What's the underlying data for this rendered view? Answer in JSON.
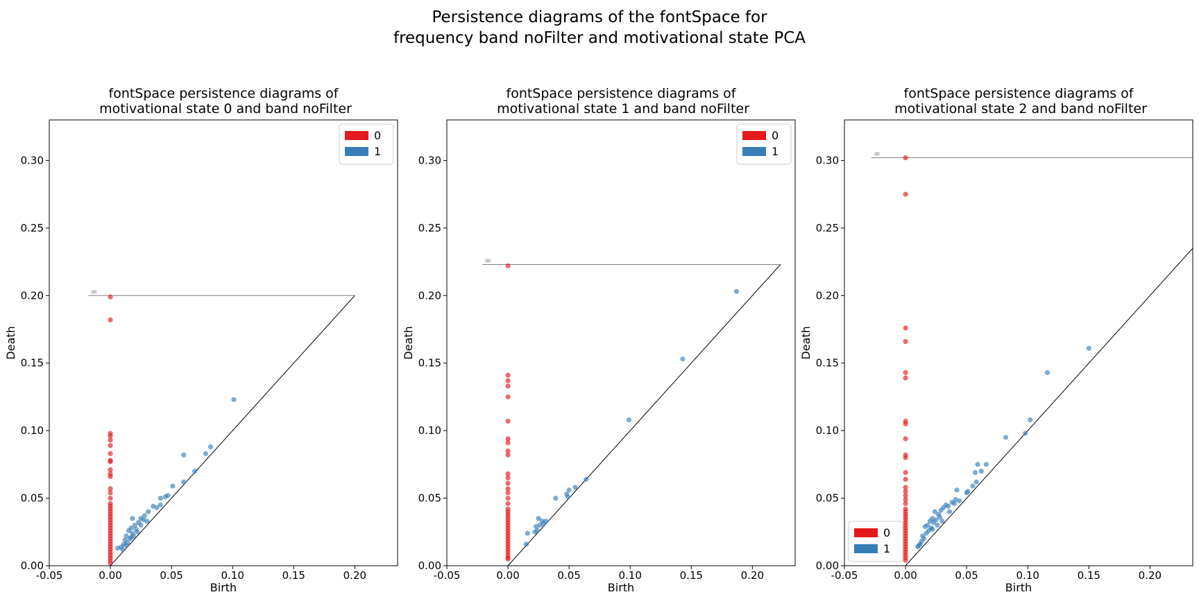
{
  "figure": {
    "title_line1": "Persistence diagrams of the fontSpace for",
    "title_line2": "frequency band noFilter and motivational state PCA",
    "colors": {
      "h0": "#e41a1c",
      "h1": "#377eb8",
      "axis": "#000000",
      "infinity_line": "#7f7f7f"
    }
  },
  "chart_data": [
    {
      "type": "scatter",
      "title": "fontSpace persistence diagrams of\n motivational state 0 and band noFilter",
      "xlabel": "Birth",
      "ylabel": "Death",
      "xlim": [
        -0.05,
        0.235
      ],
      "ylim": [
        0.0,
        0.33
      ],
      "xticks": [
        "-0.05",
        "0.00",
        "0.05",
        "0.10",
        "0.15",
        "0.20"
      ],
      "yticks": [
        "0.00",
        "0.05",
        "0.10",
        "0.15",
        "0.20",
        "0.25",
        "0.30"
      ],
      "infinity": {
        "death": 0.2,
        "x_start": -0.018,
        "label": "∞"
      },
      "diagonal_max": 0.2,
      "legend": {
        "position": "top-right",
        "entries": [
          "0",
          "1"
        ]
      },
      "series": [
        {
          "name": "0",
          "color": "#e41a1c",
          "points": [
            [
              0,
              0.199
            ],
            [
              0,
              0.182
            ],
            [
              0,
              0.098
            ],
            [
              0,
              0.096
            ],
            [
              0,
              0.093
            ],
            [
              0,
              0.089
            ],
            [
              0,
              0.083
            ],
            [
              0,
              0.078
            ],
            [
              0,
              0.077
            ],
            [
              0,
              0.071
            ],
            [
              0,
              0.068
            ],
            [
              0,
              0.066
            ],
            [
              0,
              0.057
            ],
            [
              0,
              0.054
            ],
            [
              0,
              0.05
            ],
            [
              0,
              0.046
            ],
            [
              0,
              0.044
            ],
            [
              0,
              0.042
            ],
            [
              0,
              0.04
            ],
            [
              0,
              0.038
            ],
            [
              0,
              0.036
            ],
            [
              0,
              0.034
            ],
            [
              0,
              0.032
            ],
            [
              0,
              0.03
            ],
            [
              0,
              0.028
            ],
            [
              0,
              0.026
            ],
            [
              0,
              0.024
            ],
            [
              0,
              0.022
            ],
            [
              0,
              0.02
            ],
            [
              0,
              0.018
            ],
            [
              0,
              0.016
            ],
            [
              0,
              0.014
            ],
            [
              0,
              0.012
            ],
            [
              0,
              0.01
            ],
            [
              0,
              0.008
            ],
            [
              0,
              0.006
            ],
            [
              0,
              0.004
            ],
            [
              0,
              0.002
            ]
          ]
        },
        {
          "name": "1",
          "color": "#377eb8",
          "points": [
            [
              0.101,
              0.123
            ],
            [
              0.082,
              0.088
            ],
            [
              0.078,
              0.083
            ],
            [
              0.06,
              0.082
            ],
            [
              0.069,
              0.07
            ],
            [
              0.06,
              0.062
            ],
            [
              0.051,
              0.059
            ],
            [
              0.047,
              0.052
            ],
            [
              0.045,
              0.051
            ],
            [
              0.041,
              0.05
            ],
            [
              0.041,
              0.045
            ],
            [
              0.038,
              0.043
            ],
            [
              0.035,
              0.044
            ],
            [
              0.031,
              0.04
            ],
            [
              0.028,
              0.037
            ],
            [
              0.025,
              0.035
            ],
            [
              0.018,
              0.035
            ],
            [
              0.023,
              0.032
            ],
            [
              0.02,
              0.03
            ],
            [
              0.017,
              0.028
            ],
            [
              0.021,
              0.027
            ],
            [
              0.015,
              0.026
            ],
            [
              0.018,
              0.024
            ],
            [
              0.013,
              0.022
            ],
            [
              0.016,
              0.02
            ],
            [
              0.012,
              0.019
            ],
            [
              0.014,
              0.017
            ],
            [
              0.011,
              0.016
            ],
            [
              0.013,
              0.015
            ],
            [
              0.009,
              0.014
            ],
            [
              0.006,
              0.013
            ],
            [
              0.01,
              0.012
            ],
            [
              0.025,
              0.03
            ],
            [
              0.03,
              0.033
            ],
            [
              0.027,
              0.034
            ],
            [
              0.019,
              0.022
            ],
            [
              0.022,
              0.025
            ],
            [
              0.017,
              0.021
            ]
          ]
        }
      ]
    },
    {
      "type": "scatter",
      "title": "fontSpace persistence diagrams of\n motivational state 1 and band noFilter",
      "xlabel": "Birth",
      "ylabel": "Death",
      "xlim": [
        -0.05,
        0.235
      ],
      "ylim": [
        0.0,
        0.33
      ],
      "xticks": [
        "-0.05",
        "0.00",
        "0.05",
        "0.10",
        "0.15",
        "0.20"
      ],
      "yticks": [
        "0.00",
        "0.05",
        "0.10",
        "0.15",
        "0.20",
        "0.25",
        "0.30"
      ],
      "infinity": {
        "death": 0.223,
        "x_start": -0.021,
        "label": "∞"
      },
      "diagonal_max": 0.223,
      "legend": {
        "position": "top-right",
        "entries": [
          "0",
          "1"
        ]
      },
      "series": [
        {
          "name": "0",
          "color": "#e41a1c",
          "points": [
            [
              0,
              0.222
            ],
            [
              0,
              0.141
            ],
            [
              0,
              0.137
            ],
            [
              0,
              0.133
            ],
            [
              0,
              0.125
            ],
            [
              0,
              0.107
            ],
            [
              0,
              0.094
            ],
            [
              0,
              0.091
            ],
            [
              0,
              0.085
            ],
            [
              0,
              0.082
            ],
            [
              0,
              0.068
            ],
            [
              0,
              0.065
            ],
            [
              0,
              0.061
            ],
            [
              0,
              0.057
            ],
            [
              0,
              0.054
            ],
            [
              0,
              0.05
            ],
            [
              0,
              0.046
            ],
            [
              0,
              0.042
            ],
            [
              0,
              0.04
            ],
            [
              0,
              0.038
            ],
            [
              0,
              0.036
            ],
            [
              0,
              0.034
            ],
            [
              0,
              0.032
            ],
            [
              0,
              0.03
            ],
            [
              0,
              0.028
            ],
            [
              0,
              0.026
            ],
            [
              0,
              0.024
            ],
            [
              0,
              0.022
            ],
            [
              0,
              0.02
            ],
            [
              0,
              0.018
            ],
            [
              0,
              0.016
            ],
            [
              0,
              0.014
            ],
            [
              0,
              0.012
            ],
            [
              0,
              0.01
            ],
            [
              0,
              0.008
            ],
            [
              0,
              0.006
            ],
            [
              0,
              0.005
            ]
          ]
        },
        {
          "name": "1",
          "color": "#377eb8",
          "points": [
            [
              0.187,
              0.203
            ],
            [
              0.143,
              0.153
            ],
            [
              0.099,
              0.108
            ],
            [
              0.064,
              0.064
            ],
            [
              0.055,
              0.058
            ],
            [
              0.05,
              0.056
            ],
            [
              0.048,
              0.053
            ],
            [
              0.049,
              0.051
            ],
            [
              0.039,
              0.05
            ],
            [
              0.031,
              0.033
            ],
            [
              0.028,
              0.033
            ],
            [
              0.025,
              0.035
            ],
            [
              0.029,
              0.031
            ],
            [
              0.026,
              0.03
            ],
            [
              0.023,
              0.029
            ],
            [
              0.024,
              0.026
            ],
            [
              0.016,
              0.024
            ],
            [
              0.022,
              0.025
            ],
            [
              0.015,
              0.016
            ]
          ]
        }
      ]
    },
    {
      "type": "scatter",
      "title": "fontSpace persistence diagrams of\n motivational state 2 and band noFilter",
      "xlabel": "Birth",
      "ylabel": "Death",
      "xlim": [
        -0.05,
        0.235
      ],
      "ylim": [
        0.0,
        0.33
      ],
      "xticks": [
        "-0.05",
        "0.00",
        "0.05",
        "0.10",
        "0.15",
        "0.20"
      ],
      "yticks": [
        "0.00",
        "0.05",
        "0.10",
        "0.15",
        "0.20",
        "0.25",
        "0.30"
      ],
      "infinity": {
        "death": 0.302,
        "x_start": -0.028,
        "label": "∞"
      },
      "diagonal_max": 0.302,
      "legend": {
        "position": "lower-left",
        "entries": [
          "0",
          "1"
        ]
      },
      "series": [
        {
          "name": "0",
          "color": "#e41a1c",
          "points": [
            [
              0,
              0.302
            ],
            [
              0,
              0.275
            ],
            [
              0,
              0.176
            ],
            [
              0,
              0.166
            ],
            [
              0,
              0.143
            ],
            [
              0,
              0.139
            ],
            [
              0,
              0.107
            ],
            [
              0,
              0.105
            ],
            [
              0,
              0.094
            ],
            [
              0,
              0.082
            ],
            [
              0,
              0.08
            ],
            [
              0,
              0.069
            ],
            [
              0,
              0.064
            ],
            [
              0,
              0.058
            ],
            [
              0,
              0.055
            ],
            [
              0,
              0.052
            ],
            [
              0,
              0.049
            ],
            [
              0,
              0.046
            ],
            [
              0,
              0.042
            ],
            [
              0,
              0.04
            ],
            [
              0,
              0.038
            ],
            [
              0,
              0.036
            ],
            [
              0,
              0.034
            ],
            [
              0,
              0.032
            ],
            [
              0,
              0.03
            ],
            [
              0,
              0.028
            ],
            [
              0,
              0.026
            ],
            [
              0,
              0.024
            ],
            [
              0,
              0.022
            ],
            [
              0,
              0.02
            ],
            [
              0,
              0.018
            ],
            [
              0,
              0.016
            ],
            [
              0,
              0.014
            ],
            [
              0,
              0.012
            ],
            [
              0,
              0.01
            ],
            [
              0,
              0.008
            ],
            [
              0,
              0.006
            ],
            [
              0,
              0.004
            ]
          ]
        },
        {
          "name": "1",
          "color": "#377eb8",
          "points": [
            [
              0.15,
              0.161
            ],
            [
              0.116,
              0.143
            ],
            [
              0.102,
              0.108
            ],
            [
              0.098,
              0.098
            ],
            [
              0.082,
              0.095
            ],
            [
              0.066,
              0.075
            ],
            [
              0.059,
              0.075
            ],
            [
              0.062,
              0.07
            ],
            [
              0.057,
              0.069
            ],
            [
              0.058,
              0.062
            ],
            [
              0.055,
              0.059
            ],
            [
              0.051,
              0.055
            ],
            [
              0.05,
              0.054
            ],
            [
              0.042,
              0.056
            ],
            [
              0.044,
              0.048
            ],
            [
              0.041,
              0.049
            ],
            [
              0.04,
              0.046
            ],
            [
              0.038,
              0.047
            ],
            [
              0.035,
              0.044
            ],
            [
              0.033,
              0.045
            ],
            [
              0.031,
              0.043
            ],
            [
              0.029,
              0.041
            ],
            [
              0.024,
              0.04
            ],
            [
              0.027,
              0.038
            ],
            [
              0.028,
              0.036
            ],
            [
              0.025,
              0.034
            ],
            [
              0.022,
              0.035
            ],
            [
              0.02,
              0.033
            ],
            [
              0.023,
              0.032
            ],
            [
              0.018,
              0.03
            ],
            [
              0.021,
              0.028
            ],
            [
              0.016,
              0.029
            ],
            [
              0.019,
              0.026
            ],
            [
              0.017,
              0.024
            ],
            [
              0.014,
              0.022
            ],
            [
              0.015,
              0.02
            ],
            [
              0.013,
              0.018
            ],
            [
              0.012,
              0.016
            ],
            [
              0.011,
              0.015
            ],
            [
              0.01,
              0.014
            ],
            [
              0.026,
              0.03
            ],
            [
              0.022,
              0.027
            ],
            [
              0.03,
              0.033
            ],
            [
              0.036,
              0.04
            ]
          ]
        }
      ]
    }
  ]
}
